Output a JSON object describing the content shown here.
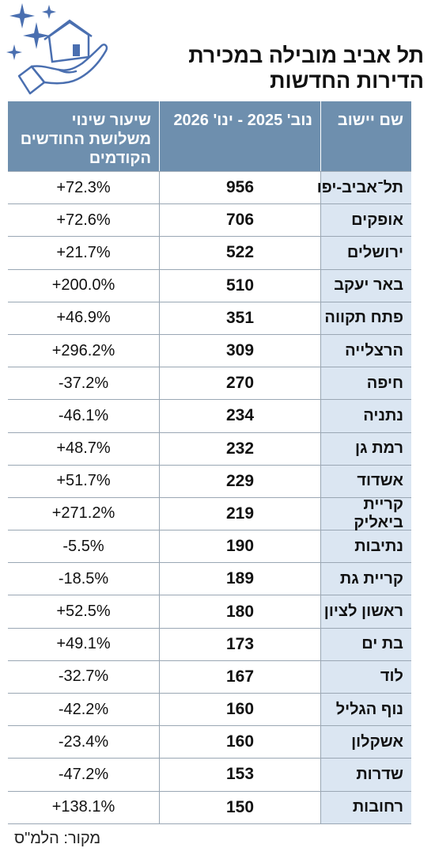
{
  "title": "תל אביב מובילה במכירת הדירות החדשות",
  "source": "מקור: הלמ\"ס",
  "colors": {
    "header_bg": "#6e8fae",
    "name_col_bg": "#dbe6f2",
    "logo_accent": "#4a6fb0"
  },
  "chart_data": {
    "type": "table",
    "columns": [
      "שם יישוב",
      "נוב' 2025 - ינו' 2026",
      "שיעור שינוי משלושת החודשים הקודמים"
    ],
    "rows": [
      {
        "name": "תל־אביב-יפו",
        "sales": "956",
        "change": "+72.3%"
      },
      {
        "name": "אופקים",
        "sales": "706",
        "change": "+72.6%"
      },
      {
        "name": "ירושלים",
        "sales": "522",
        "change": "+21.7%"
      },
      {
        "name": "באר יעקב",
        "sales": "510",
        "change": "+200.0%"
      },
      {
        "name": "פתח תקווה",
        "sales": "351",
        "change": "+46.9%"
      },
      {
        "name": "הרצלייה",
        "sales": "309",
        "change": "+296.2%"
      },
      {
        "name": "חיפה",
        "sales": "270",
        "change": "-37.2%"
      },
      {
        "name": "נתניה",
        "sales": "234",
        "change": "-46.1%"
      },
      {
        "name": "רמת גן",
        "sales": "232",
        "change": "+48.7%"
      },
      {
        "name": "אשדוד",
        "sales": "229",
        "change": "+51.7%"
      },
      {
        "name": "קריית ביאליק",
        "sales": "219",
        "change": "+271.2%"
      },
      {
        "name": "נתיבות",
        "sales": "190",
        "change": "-5.5%"
      },
      {
        "name": "קריית גת",
        "sales": "189",
        "change": "-18.5%"
      },
      {
        "name": "ראשון לציון",
        "sales": "180",
        "change": "+52.5%"
      },
      {
        "name": "בת ים",
        "sales": "173",
        "change": "+49.1%"
      },
      {
        "name": "לוד",
        "sales": "167",
        "change": "-32.7%"
      },
      {
        "name": "נוף הגליל",
        "sales": "160",
        "change": "-42.2%"
      },
      {
        "name": "אשקלון",
        "sales": "160",
        "change": "-23.4%"
      },
      {
        "name": "שדרות",
        "sales": "153",
        "change": "-47.2%"
      },
      {
        "name": "רחובות",
        "sales": "150",
        "change": "+138.1%"
      }
    ]
  }
}
